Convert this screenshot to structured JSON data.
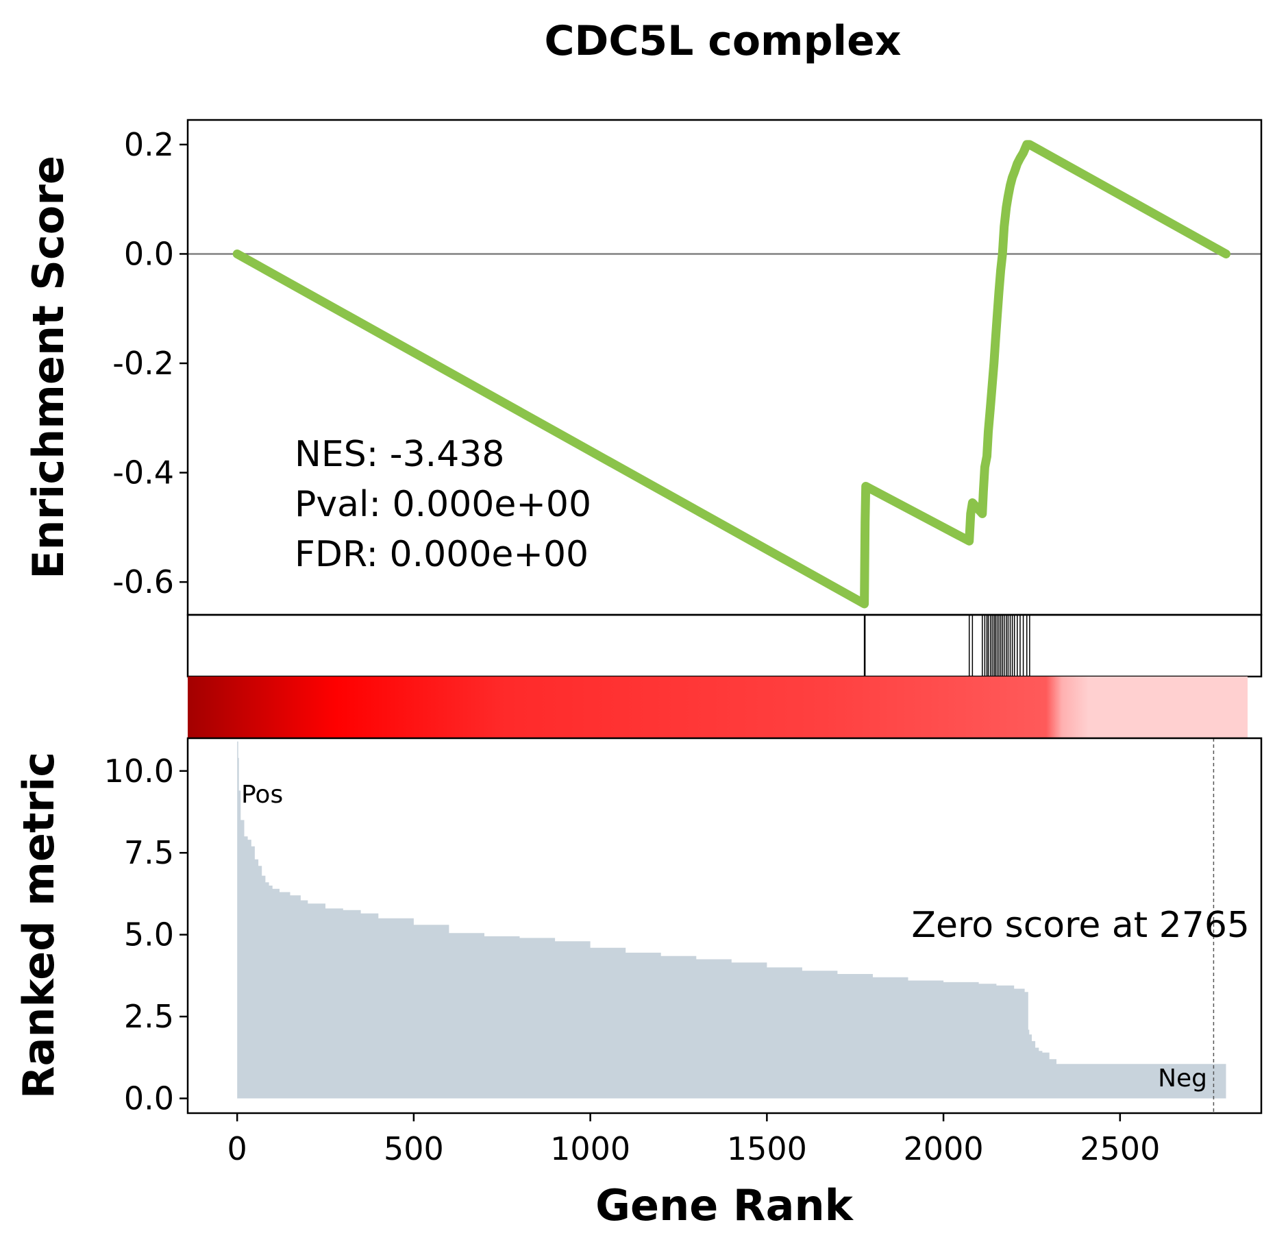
{
  "chart_data": {
    "type": "line",
    "title": "CDC5L complex",
    "xlabel": "Gene Rank",
    "xlim": [
      -140,
      2900
    ],
    "xticks": [
      0,
      500,
      1000,
      1500,
      2000,
      2500
    ],
    "enrichment_panel": {
      "ylabel": "Enrichment Score",
      "ylim": [
        -0.66,
        0.245
      ],
      "yticks": [
        0.2,
        0.0,
        -0.2,
        -0.4,
        -0.6
      ],
      "ytick_labels": [
        "0.2",
        "0.0",
        "-0.2",
        "-0.4",
        "-0.6"
      ],
      "line_color": "#8bc34a",
      "zero_line_color": "#808080",
      "series": [
        {
          "x": [
            0,
            1776,
            1778,
            1780,
            2073,
            2077,
            2082,
            2110,
            2113,
            2117,
            2123,
            2127,
            2133,
            2138,
            2143,
            2147,
            2152,
            2157,
            2162,
            2167,
            2172,
            2178,
            2183,
            2189,
            2195,
            2201,
            2209,
            2217,
            2226,
            2236,
            2244,
            2800
          ],
          "y": [
            0.0,
            -0.64,
            -0.49,
            -0.425,
            -0.525,
            -0.475,
            -0.455,
            -0.475,
            -0.435,
            -0.39,
            -0.37,
            -0.325,
            -0.28,
            -0.24,
            -0.2,
            -0.16,
            -0.115,
            -0.07,
            -0.03,
            0.0,
            0.05,
            0.085,
            0.105,
            0.125,
            0.14,
            0.15,
            0.165,
            0.175,
            0.185,
            0.2,
            0.2,
            0.0
          ]
        }
      ],
      "annotations": {
        "nes": "NES: -3.438",
        "pval": "Pval: 0.000e+00",
        "fdr": "FDR: 0.000e+00"
      }
    },
    "hits_panel": {
      "hit_positions": [
        1776,
        1778,
        2073,
        2082,
        2110,
        2117,
        2123,
        2127,
        2133,
        2138,
        2143,
        2147,
        2152,
        2157,
        2162,
        2167,
        2172,
        2178,
        2183,
        2189,
        2195,
        2201,
        2209,
        2217,
        2226,
        2236,
        2244
      ]
    },
    "rank_colorbar": {
      "colors": [
        "#a30000",
        "#ff0000",
        "#ff2a2a",
        "#ff4040",
        "#ff5a5a",
        "#ffb0b0",
        "#ffd0d0"
      ]
    },
    "ranked_metric_panel": {
      "ylabel": "Ranked metric",
      "ylim": [
        -0.45,
        11.0
      ],
      "yticks": [
        0.0,
        2.5,
        5.0,
        7.5,
        10.0
      ],
      "ytick_labels": [
        "0.0",
        "2.5",
        "5.0",
        "7.5",
        "10.0"
      ],
      "fill_color": "#c8d3dc",
      "series": [
        {
          "x": [
            0,
            3,
            5,
            10,
            20,
            30,
            40,
            50,
            60,
            70,
            80,
            90,
            100,
            120,
            150,
            180,
            200,
            250,
            300,
            350,
            400,
            500,
            600,
            700,
            800,
            900,
            1000,
            1100,
            1200,
            1300,
            1400,
            1500,
            1600,
            1700,
            1800,
            1900,
            2000,
            2100,
            2150,
            2200,
            2230,
            2240,
            2243,
            2250,
            2260,
            2270,
            2280,
            2300,
            2320,
            2330,
            2340,
            2400,
            2500,
            2600,
            2700,
            2800
          ],
          "y": [
            10.9,
            10.4,
            9.4,
            8.5,
            8.0,
            7.9,
            7.7,
            7.3,
            7.1,
            6.8,
            6.6,
            6.5,
            6.4,
            6.3,
            6.2,
            6.05,
            5.95,
            5.8,
            5.75,
            5.65,
            5.5,
            5.3,
            5.05,
            4.95,
            4.9,
            4.8,
            4.6,
            4.45,
            4.35,
            4.25,
            4.15,
            4.0,
            3.9,
            3.8,
            3.7,
            3.6,
            3.55,
            3.5,
            3.45,
            3.35,
            3.25,
            2.1,
            1.95,
            1.75,
            1.55,
            1.45,
            1.4,
            1.2,
            1.05,
            1.05,
            1.05,
            1.05,
            1.05,
            1.05,
            1.05,
            0.05
          ]
        }
      ],
      "zero_score_rank": 2765,
      "zero_score_label": "Zero score at 2765",
      "pos_label": "Pos",
      "neg_label": "Neg",
      "pos_color": "#ff0000",
      "neg_color": "#0000ff"
    }
  }
}
